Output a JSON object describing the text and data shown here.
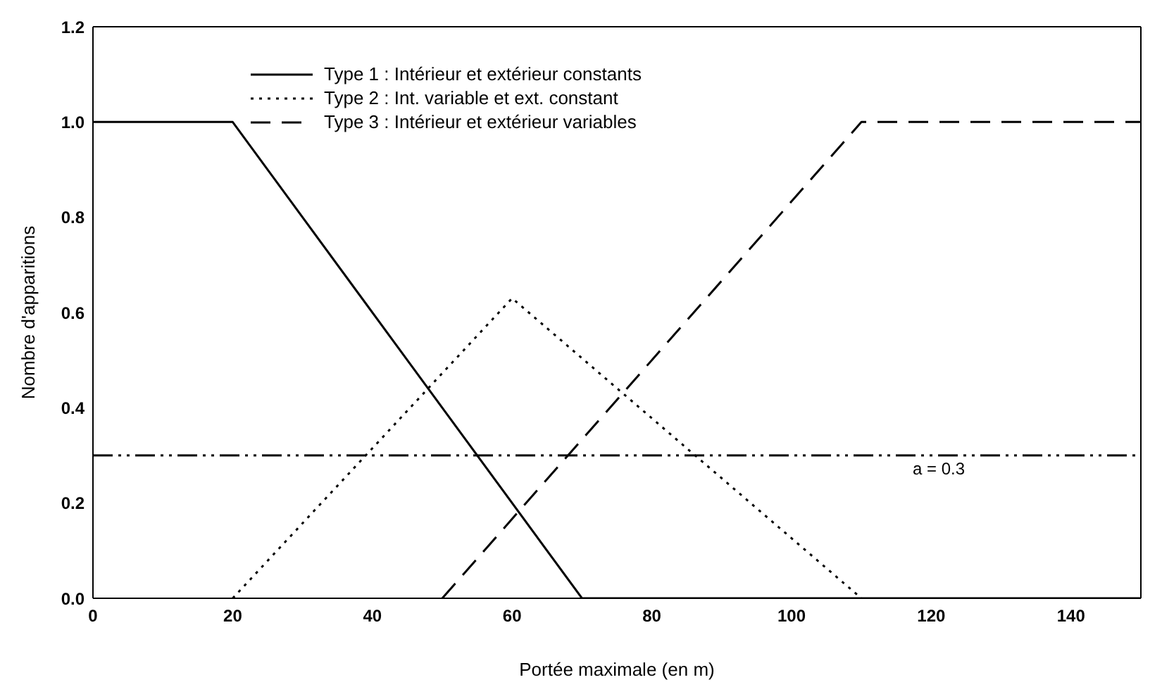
{
  "chart_data": {
    "type": "line",
    "xlabel": "Portée maximale (en m)",
    "ylabel": "Nombre d'apparitions",
    "xlim": [
      0,
      150
    ],
    "xticks": [
      0,
      20,
      40,
      60,
      80,
      100,
      120,
      140
    ],
    "ylim": [
      0,
      1.2
    ],
    "yticks": [
      {
        "value": 0,
        "label": "0.0"
      },
      {
        "value": 0.2,
        "label": "0.2"
      },
      {
        "value": 0.4,
        "label": "0.4"
      },
      {
        "value": 0.6,
        "label": "0.6"
      },
      {
        "value": 0.8,
        "label": "0.8"
      },
      {
        "value": 1,
        "label": "1.0"
      },
      {
        "value": 1.2,
        "label": "1.2"
      }
    ],
    "grid": false,
    "legend": "top",
    "marker": "none",
    "series": [
      {
        "name": "Type 1 : Intérieur et extérieur constants",
        "color": "#000000",
        "line_style": "solid",
        "x": [
          0,
          20,
          70,
          150
        ],
        "values": [
          1,
          1,
          0,
          0
        ]
      },
      {
        "name": "Type 2 : Int. variable et ext. constant",
        "color": "#000000",
        "line_style": "dotted",
        "x": [
          20,
          60,
          110
        ],
        "values": [
          0,
          0.63,
          0
        ]
      },
      {
        "name": "Type 3 : Intérieur et extérieur variables",
        "color": "#000000",
        "line_style": "dashed",
        "x": [
          50,
          110,
          150
        ],
        "values": [
          0,
          1,
          1
        ]
      }
    ],
    "ref_lines": [
      {
        "axis": "y",
        "value": 0.3,
        "label": "a = 0.3",
        "color": "#000000",
        "line_style": "dashdot"
      }
    ]
  }
}
